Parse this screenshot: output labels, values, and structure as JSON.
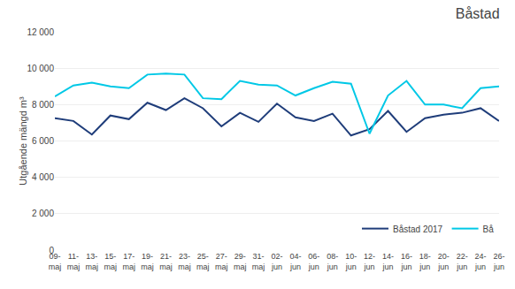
{
  "chart_data": {
    "type": "line",
    "title": "Båstad",
    "y_label": "Utgående mängd m³",
    "categories": [
      "09-\nmaj",
      "11-\nmaj",
      "13-\nmaj",
      "15-\nmaj",
      "17-\nmaj",
      "19-\nmaj",
      "21-\nmaj",
      "23-\nmaj",
      "25-\nmaj",
      "27-\nmaj",
      "29-\nmaj",
      "31-\nmaj",
      "02-\njun",
      "04-\njun",
      "06-\njun",
      "08-\njun",
      "10-\njun",
      "12-\njun",
      "14-\njun",
      "16-\njun",
      "18-\njun",
      "20-\njun",
      "22-\njun",
      "24-\njun",
      "26-\njun"
    ],
    "series": [
      {
        "name": "Båstad 2017",
        "color": "#1f3d7a",
        "values": [
          7250,
          7100,
          6350,
          7400,
          7200,
          8100,
          7700,
          8350,
          7800,
          6800,
          7550,
          7050,
          8050,
          7300,
          7100,
          7500,
          6300,
          6650,
          7650,
          6500,
          7250,
          7450,
          7550,
          7800,
          7100
        ]
      },
      {
        "name": "Bå",
        "color": "#00c8e6",
        "values": [
          8450,
          9050,
          9200,
          9000,
          8900,
          9650,
          9700,
          9650,
          8350,
          8300,
          9300,
          9100,
          9050,
          8500,
          8900,
          9250,
          9150,
          6400,
          8500,
          9300,
          8000,
          8000,
          7800,
          8900,
          9000
        ]
      }
    ],
    "ylim": [
      0,
      12000
    ],
    "yticks": [
      0,
      {
        "value": 2000,
        "label": "2 000"
      },
      {
        "value": 4000,
        "label": "4 000"
      },
      {
        "value": 6000,
        "label": "6 000"
      },
      {
        "value": 8000,
        "label": "8 000"
      },
      {
        "value": 10000,
        "label": "10 000"
      },
      {
        "value": 12000,
        "label": "12 000"
      }
    ],
    "grid": true,
    "legend": "lower right"
  }
}
